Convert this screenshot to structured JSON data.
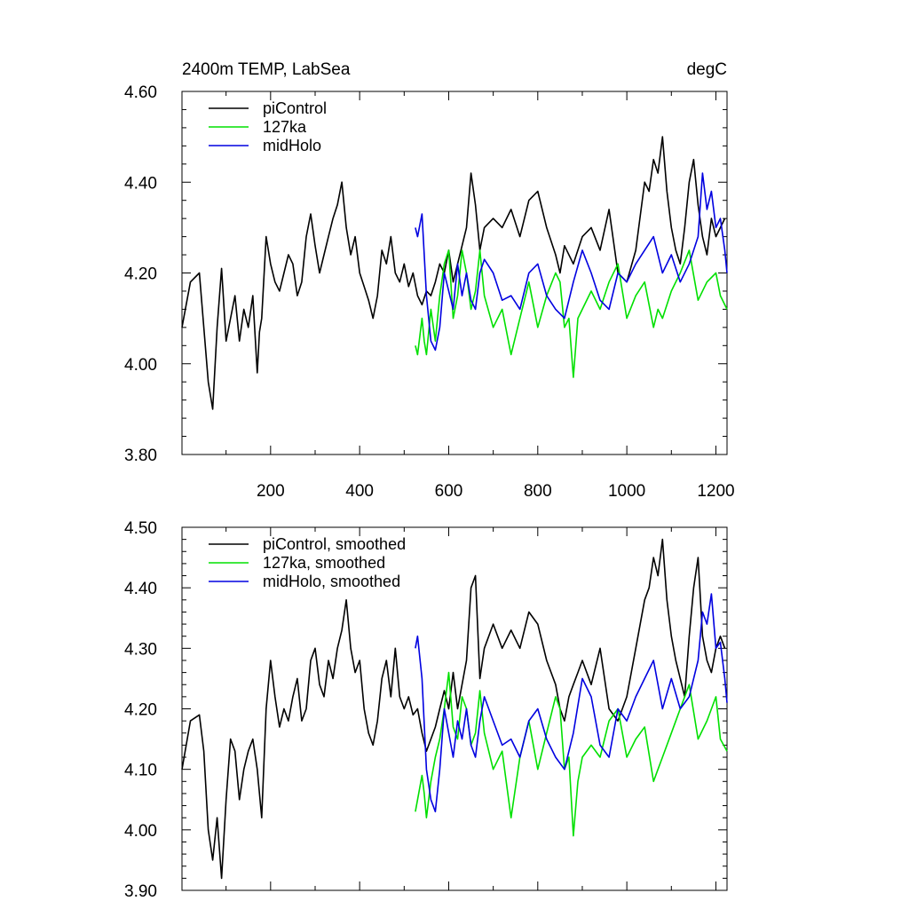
{
  "chart_data": [
    {
      "type": "line",
      "title_left": "2400m TEMP, LabSea",
      "title_right": "degC",
      "xlim": [
        1,
        1225
      ],
      "ylim": [
        3.8,
        4.6
      ],
      "x_ticks": [
        200,
        400,
        600,
        800,
        1000,
        1200
      ],
      "x_tick_labels": [
        "200",
        "400",
        "600",
        "800",
        "1000",
        "1200"
      ],
      "y_ticks": [
        3.8,
        4.0,
        4.2,
        4.4,
        4.6
      ],
      "y_tick_labels": [
        "3.80",
        "4.00",
        "4.20",
        "4.40",
        "4.60"
      ],
      "legend": {
        "location": "top-left",
        "entries": [
          "piControl",
          "127ka",
          "midHolo"
        ]
      },
      "series": [
        {
          "name": "piControl",
          "color": "#000000",
          "x": [
            1,
            20,
            40,
            55,
            60,
            70,
            80,
            90,
            100,
            110,
            120,
            130,
            140,
            150,
            160,
            170,
            175,
            180,
            190,
            200,
            210,
            220,
            230,
            240,
            250,
            260,
            270,
            280,
            290,
            300,
            310,
            320,
            330,
            340,
            350,
            360,
            370,
            380,
            390,
            400,
            410,
            420,
            430,
            440,
            450,
            460,
            470,
            480,
            490,
            500,
            510,
            520,
            530,
            540,
            550,
            560,
            570,
            580,
            590,
            600,
            610,
            620,
            640,
            650,
            660,
            670,
            680,
            700,
            720,
            740,
            760,
            780,
            800,
            820,
            840,
            850,
            860,
            880,
            900,
            920,
            940,
            960,
            980,
            1000,
            1020,
            1040,
            1050,
            1060,
            1070,
            1080,
            1090,
            1100,
            1110,
            1120,
            1130,
            1140,
            1150,
            1160,
            1170,
            1180,
            1190,
            1200,
            1210,
            1220
          ],
          "y": [
            4.08,
            4.18,
            4.2,
            4.02,
            3.96,
            3.9,
            4.08,
            4.21,
            4.05,
            4.1,
            4.15,
            4.05,
            4.12,
            4.08,
            4.15,
            3.98,
            4.07,
            4.1,
            4.28,
            4.22,
            4.18,
            4.16,
            4.2,
            4.24,
            4.22,
            4.15,
            4.18,
            4.28,
            4.33,
            4.26,
            4.2,
            4.24,
            4.28,
            4.32,
            4.35,
            4.4,
            4.3,
            4.24,
            4.28,
            4.2,
            4.17,
            4.14,
            4.1,
            4.15,
            4.25,
            4.22,
            4.28,
            4.2,
            4.18,
            4.22,
            4.17,
            4.2,
            4.15,
            4.13,
            4.16,
            4.15,
            4.18,
            4.22,
            4.2,
            4.25,
            4.18,
            4.22,
            4.3,
            4.42,
            4.35,
            4.25,
            4.3,
            4.32,
            4.3,
            4.34,
            4.28,
            4.36,
            4.38,
            4.3,
            4.24,
            4.2,
            4.26,
            4.22,
            4.28,
            4.3,
            4.25,
            4.34,
            4.2,
            4.18,
            4.25,
            4.4,
            4.38,
            4.45,
            4.42,
            4.5,
            4.38,
            4.3,
            4.25,
            4.22,
            4.3,
            4.4,
            4.45,
            4.35,
            4.28,
            4.24,
            4.32,
            4.28,
            4.3,
            4.32
          ]
        },
        {
          "name": "127ka",
          "color": "#00e000",
          "x": [
            525,
            530,
            540,
            545,
            550,
            560,
            570,
            580,
            590,
            600,
            610,
            620,
            630,
            640,
            650,
            660,
            670,
            680,
            700,
            720,
            740,
            760,
            780,
            800,
            820,
            840,
            850,
            860,
            870,
            880,
            890,
            900,
            920,
            940,
            960,
            980,
            1000,
            1020,
            1040,
            1060,
            1070,
            1080,
            1100,
            1120,
            1140,
            1160,
            1180,
            1200,
            1210,
            1225
          ],
          "y": [
            4.04,
            4.02,
            4.1,
            4.05,
            4.02,
            4.12,
            4.05,
            4.15,
            4.22,
            4.25,
            4.1,
            4.15,
            4.25,
            4.2,
            4.12,
            4.16,
            4.25,
            4.15,
            4.08,
            4.12,
            4.02,
            4.1,
            4.18,
            4.08,
            4.15,
            4.2,
            4.18,
            4.08,
            4.1,
            3.97,
            4.1,
            4.12,
            4.16,
            4.12,
            4.18,
            4.22,
            4.1,
            4.15,
            4.18,
            4.08,
            4.12,
            4.1,
            4.16,
            4.2,
            4.25,
            4.14,
            4.18,
            4.2,
            4.15,
            4.12
          ]
        },
        {
          "name": "midHolo",
          "color": "#0000e0",
          "x": [
            525,
            530,
            540,
            550,
            560,
            570,
            580,
            590,
            600,
            610,
            620,
            630,
            640,
            650,
            660,
            670,
            680,
            700,
            720,
            740,
            760,
            780,
            800,
            820,
            840,
            860,
            880,
            900,
            920,
            940,
            960,
            980,
            1000,
            1020,
            1040,
            1060,
            1080,
            1100,
            1120,
            1140,
            1160,
            1170,
            1180,
            1190,
            1200,
            1210,
            1220,
            1225
          ],
          "y": [
            4.3,
            4.28,
            4.33,
            4.15,
            4.05,
            4.03,
            4.08,
            4.2,
            4.16,
            4.12,
            4.22,
            4.15,
            4.2,
            4.14,
            4.12,
            4.2,
            4.23,
            4.2,
            4.14,
            4.15,
            4.12,
            4.2,
            4.22,
            4.15,
            4.12,
            4.1,
            4.18,
            4.25,
            4.2,
            4.14,
            4.12,
            4.2,
            4.18,
            4.22,
            4.25,
            4.28,
            4.2,
            4.24,
            4.18,
            4.22,
            4.28,
            4.42,
            4.34,
            4.38,
            4.3,
            4.32,
            4.25,
            4.2
          ]
        }
      ]
    },
    {
      "type": "line",
      "xlim": [
        1,
        1225
      ],
      "ylim": [
        3.9,
        4.5
      ],
      "x_ticks": [
        200,
        400,
        600,
        800,
        1000,
        1200
      ],
      "y_ticks": [
        3.9,
        4.0,
        4.1,
        4.2,
        4.3,
        4.4,
        4.5
      ],
      "y_tick_labels": [
        "3.90",
        "4.00",
        "4.10",
        "4.20",
        "4.30",
        "4.40",
        "4.50"
      ],
      "legend": {
        "location": "top-left",
        "entries": [
          "piControl, smoothed",
          "127ka, smoothed",
          "midHolo, smoothed"
        ]
      },
      "series": [
        {
          "name": "piControl, smoothed",
          "color": "#000000",
          "x": [
            1,
            20,
            40,
            50,
            60,
            70,
            80,
            90,
            100,
            110,
            120,
            130,
            140,
            150,
            160,
            170,
            180,
            190,
            200,
            210,
            220,
            230,
            240,
            250,
            260,
            270,
            280,
            290,
            300,
            310,
            320,
            330,
            340,
            350,
            360,
            370,
            380,
            390,
            400,
            410,
            420,
            430,
            440,
            450,
            460,
            470,
            480,
            490,
            500,
            510,
            520,
            530,
            540,
            550,
            560,
            570,
            580,
            590,
            600,
            610,
            620,
            630,
            640,
            650,
            660,
            670,
            680,
            700,
            720,
            740,
            760,
            780,
            800,
            820,
            840,
            850,
            860,
            870,
            880,
            890,
            900,
            920,
            940,
            960,
            980,
            1000,
            1020,
            1040,
            1050,
            1060,
            1070,
            1080,
            1090,
            1100,
            1110,
            1120,
            1130,
            1140,
            1150,
            1160,
            1170,
            1180,
            1190,
            1200,
            1210,
            1220
          ],
          "y": [
            4.1,
            4.18,
            4.19,
            4.13,
            4.0,
            3.95,
            4.02,
            3.92,
            4.05,
            4.15,
            4.13,
            4.05,
            4.1,
            4.13,
            4.15,
            4.1,
            4.02,
            4.2,
            4.28,
            4.22,
            4.17,
            4.2,
            4.18,
            4.22,
            4.25,
            4.18,
            4.2,
            4.28,
            4.3,
            4.24,
            4.22,
            4.28,
            4.25,
            4.3,
            4.33,
            4.38,
            4.3,
            4.26,
            4.28,
            4.2,
            4.16,
            4.14,
            4.18,
            4.25,
            4.28,
            4.22,
            4.3,
            4.22,
            4.2,
            4.22,
            4.19,
            4.2,
            4.16,
            4.13,
            4.15,
            4.17,
            4.2,
            4.23,
            4.2,
            4.26,
            4.2,
            4.24,
            4.28,
            4.4,
            4.42,
            4.25,
            4.3,
            4.34,
            4.3,
            4.33,
            4.3,
            4.36,
            4.34,
            4.28,
            4.24,
            4.2,
            4.18,
            4.22,
            4.24,
            4.26,
            4.28,
            4.24,
            4.3,
            4.2,
            4.18,
            4.22,
            4.3,
            4.38,
            4.4,
            4.45,
            4.42,
            4.48,
            4.38,
            4.32,
            4.28,
            4.25,
            4.22,
            4.32,
            4.4,
            4.45,
            4.32,
            4.28,
            4.26,
            4.3,
            4.32,
            4.3
          ]
        },
        {
          "name": "127ka, smoothed",
          "color": "#00e000",
          "x": [
            525,
            530,
            540,
            545,
            550,
            560,
            570,
            580,
            590,
            600,
            610,
            620,
            630,
            640,
            650,
            660,
            670,
            680,
            700,
            720,
            740,
            760,
            780,
            800,
            820,
            840,
            850,
            860,
            870,
            880,
            890,
            900,
            920,
            940,
            960,
            980,
            1000,
            1020,
            1040,
            1060,
            1070,
            1080,
            1100,
            1120,
            1140,
            1160,
            1180,
            1200,
            1210,
            1225
          ],
          "y": [
            4.03,
            4.05,
            4.09,
            4.06,
            4.02,
            4.08,
            4.12,
            4.15,
            4.2,
            4.26,
            4.17,
            4.15,
            4.22,
            4.2,
            4.14,
            4.16,
            4.23,
            4.16,
            4.1,
            4.13,
            4.02,
            4.12,
            4.18,
            4.1,
            4.16,
            4.22,
            4.2,
            4.1,
            4.12,
            3.99,
            4.08,
            4.12,
            4.14,
            4.12,
            4.18,
            4.2,
            4.12,
            4.15,
            4.17,
            4.08,
            4.1,
            4.12,
            4.16,
            4.2,
            4.24,
            4.15,
            4.18,
            4.22,
            4.15,
            4.13
          ]
        },
        {
          "name": "midHolo, smoothed",
          "color": "#0000e0",
          "x": [
            525,
            530,
            540,
            550,
            560,
            570,
            580,
            590,
            600,
            610,
            620,
            630,
            640,
            650,
            660,
            670,
            680,
            700,
            720,
            740,
            760,
            780,
            800,
            820,
            840,
            860,
            880,
            900,
            920,
            940,
            960,
            980,
            1000,
            1020,
            1040,
            1060,
            1080,
            1100,
            1120,
            1140,
            1160,
            1170,
            1180,
            1190,
            1200,
            1210,
            1220,
            1225
          ],
          "y": [
            4.3,
            4.32,
            4.25,
            4.1,
            4.05,
            4.03,
            4.1,
            4.2,
            4.16,
            4.12,
            4.18,
            4.15,
            4.2,
            4.14,
            4.12,
            4.18,
            4.22,
            4.18,
            4.14,
            4.15,
            4.12,
            4.18,
            4.2,
            4.15,
            4.12,
            4.1,
            4.16,
            4.25,
            4.22,
            4.14,
            4.12,
            4.2,
            4.18,
            4.22,
            4.25,
            4.28,
            4.2,
            4.25,
            4.2,
            4.22,
            4.28,
            4.36,
            4.34,
            4.39,
            4.3,
            4.31,
            4.25,
            4.21
          ]
        }
      ]
    }
  ]
}
